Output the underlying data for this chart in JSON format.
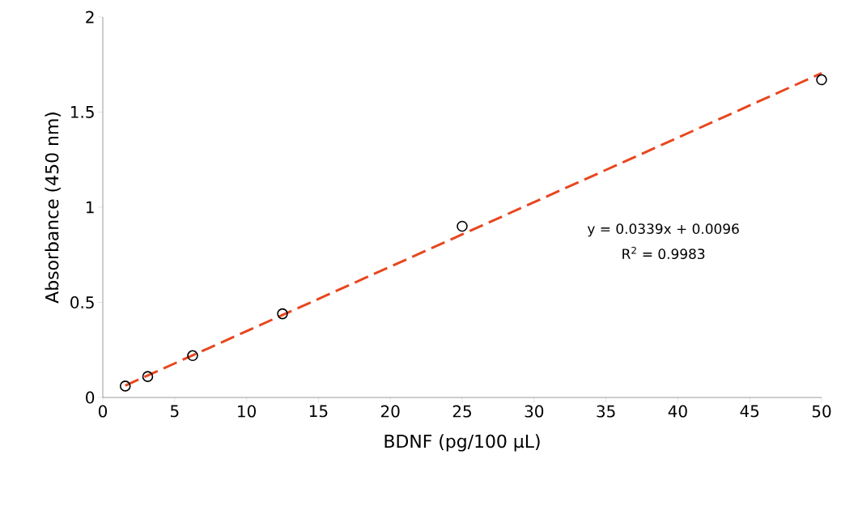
{
  "chart_data": {
    "type": "scatter",
    "xlabel": "BDNF (pg/100 μL)",
    "ylabel": "Absorbance (450 nm)",
    "annotations": [
      "y = 0.0339x + 0.0096",
      "R$^{2}$ = 0.9983"
    ],
    "x": [
      1.5625,
      3.125,
      6.25,
      12.5,
      25,
      50
    ],
    "series": [
      {
        "color": "#000000",
        "marker": "circle",
        "values": [
          0.06,
          0.11,
          0.22,
          0.44,
          0.9,
          1.67
        ]
      },
      {
        "type": "line",
        "color": "#e8461e",
        "line_style": "dashed",
        "marker": "none",
        "x": [
          1.5625,
          50
        ],
        "values": [
          0.0626,
          1.7046
        ]
      }
    ],
    "xlim": [
      0,
      50
    ],
    "ylim": [
      0,
      2
    ],
    "xticks": [
      0,
      5,
      10,
      15,
      20,
      25,
      30,
      35,
      40,
      45,
      50
    ],
    "yticks": [
      0,
      0.5,
      1,
      1.5,
      2
    ]
  }
}
